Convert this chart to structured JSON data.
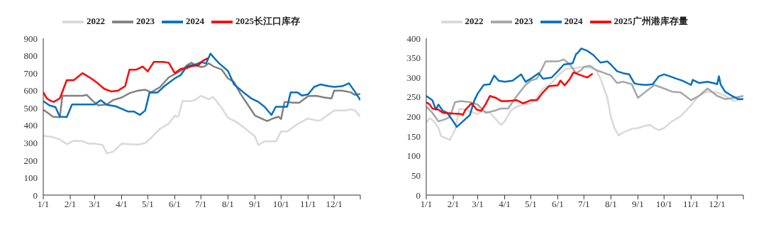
{
  "chart_data": [
    {
      "type": "line",
      "legend": "top",
      "xlim": [
        "--01-01",
        "--12-31"
      ],
      "ylim": [
        0,
        900
      ],
      "yticks": [
        0,
        100,
        200,
        300,
        400,
        500,
        600,
        700,
        800,
        900
      ],
      "xticks": [
        {
          "value": "--01-01",
          "label": "1/1"
        },
        {
          "value": "--02-01",
          "label": "2/1"
        },
        {
          "value": "--03-01",
          "label": "3/1"
        },
        {
          "value": "--04-01",
          "label": "4/1"
        },
        {
          "value": "--05-01",
          "label": "5/1"
        },
        {
          "value": "--06-01",
          "label": "6/1"
        },
        {
          "value": "--07-01",
          "label": "7/1"
        },
        {
          "value": "--08-01",
          "label": "8/1"
        },
        {
          "value": "--09-01",
          "label": "9/1"
        },
        {
          "value": "--10-01",
          "label": "10/1"
        },
        {
          "value": "--11-01",
          "label": "11/1"
        },
        {
          "value": "--12-01",
          "label": "12/1"
        },
        {
          "value": "--12-31",
          "label": null
        }
      ],
      "series": [
        {
          "name": "2022",
          "color": "#d9d9d9",
          "x": [
            "--01-01",
            "--01-10",
            "--01-20",
            "--01-28",
            "--02-05",
            "--02-15",
            "--02-22",
            "--03-01",
            "--03-10",
            "--03-15",
            "--03-22",
            "--04-01",
            "--04-10",
            "--04-20",
            "--04-28",
            "--05-05",
            "--05-15",
            "--05-25",
            "--06-01",
            "--06-05",
            "--06-10",
            "--06-20",
            "--06-25",
            "--07-01",
            "--07-10",
            "--07-15",
            "--07-25",
            "--08-01",
            "--08-10",
            "--08-20",
            "--09-01",
            "--09-05",
            "--09-12",
            "--09-25",
            "--10-01",
            "--10-08",
            "--10-20",
            "--11-01",
            "--11-10",
            "--11-15",
            "--11-25",
            "--12-01",
            "--12-15",
            "--12-20",
            "--12-25",
            "--12-31"
          ],
          "values": [
            340,
            335,
            320,
            292,
            312,
            310,
            295,
            295,
            288,
            240,
            248,
            295,
            292,
            290,
            298,
            330,
            380,
            410,
            455,
            450,
            540,
            540,
            548,
            570,
            550,
            564,
            500,
            443,
            422,
            386,
            337,
            287,
            308,
            308,
            365,
            365,
            408,
            440,
            429,
            429,
            464,
            486,
            486,
            493,
            486,
            450
          ]
        },
        {
          "name": "2023",
          "color": "#808080",
          "x": [
            "--01-01",
            "--01-08",
            "--01-12",
            "--01-20",
            "--01-23",
            "--02-05",
            "--02-15",
            "--02-20",
            "--02-28",
            "--03-05",
            "--03-15",
            "--03-22",
            "--04-01",
            "--04-10",
            "--04-20",
            "--04-28",
            "--05-05",
            "--05-15",
            "--05-25",
            "--06-01",
            "--06-10",
            "--06-15",
            "--06-20",
            "--06-25",
            "--07-01",
            "--07-05",
            "--07-10",
            "--07-15",
            "--07-25",
            "--08-01",
            "--08-08",
            "--08-15",
            "--08-25",
            "--09-01",
            "--09-08",
            "--09-15",
            "--09-22",
            "--09-28",
            "--10-01",
            "--10-05",
            "--10-15",
            "--10-22",
            "--11-01",
            "--11-10",
            "--11-20",
            "--11-28",
            "--12-01",
            "--12-10",
            "--12-20",
            "--12-25",
            "--12-31"
          ],
          "values": [
            490,
            465,
            450,
            447,
            570,
            570,
            570,
            575,
            535,
            515,
            520,
            545,
            560,
            585,
            600,
            605,
            590,
            620,
            675,
            695,
            720,
            745,
            760,
            745,
            735,
            738,
            756,
            740,
            720,
            670,
            649,
            585,
            510,
            457,
            440,
            425,
            440,
            450,
            436,
            535,
            530,
            530,
            568,
            570,
            560,
            555,
            600,
            600,
            590,
            575,
            580
          ]
        },
        {
          "name": "2024",
          "color": "#0070c0",
          "x": [
            "--01-01",
            "--01-08",
            "--01-15",
            "--01-20",
            "--01-28",
            "--02-03",
            "--02-15",
            "--02-25",
            "--03-01",
            "--03-08",
            "--03-15",
            "--03-25",
            "--04-01",
            "--04-08",
            "--04-15",
            "--04-22",
            "--04-28",
            "--05-03",
            "--05-12",
            "--05-20",
            "--06-01",
            "--06-08",
            "--06-15",
            "--06-25",
            "--07-01",
            "--07-07",
            "--07-12",
            "--07-18",
            "--07-22",
            "--08-01",
            "--08-08",
            "--08-20",
            "--08-28",
            "--09-05",
            "--09-12",
            "--09-20",
            "--09-25",
            "--10-01",
            "--10-08",
            "--10-12",
            "--10-20",
            "--10-25",
            "--11-01",
            "--11-08",
            "--11-15",
            "--11-25",
            "--12-01",
            "--12-10",
            "--12-18",
            "--12-25",
            "--12-31"
          ],
          "values": [
            540,
            515,
            505,
            450,
            448,
            520,
            520,
            520,
            520,
            545,
            518,
            510,
            495,
            480,
            480,
            460,
            485,
            588,
            588,
            625,
            670,
            690,
            740,
            750,
            763,
            756,
            812,
            777,
            756,
            713,
            635,
            585,
            554,
            535,
            507,
            460,
            507,
            507,
            507,
            589,
            589,
            571,
            578,
            621,
            635,
            625,
            621,
            625,
            642,
            592,
            545
          ]
        },
        {
          "name": "2025长江口库存",
          "color": "#ff0000",
          "x": [
            "--01-01",
            "--01-05",
            "--01-10",
            "--01-13",
            "--01-20",
            "--01-28",
            "--02-05",
            "--02-15",
            "--02-25",
            "--03-05",
            "--03-12",
            "--03-20",
            "--03-28",
            "--04-05",
            "--04-10",
            "--04-18",
            "--04-25",
            "--05-01",
            "--05-08",
            "--05-18",
            "--05-25",
            "--06-01",
            "--06-08",
            "--06-15",
            "--06-20",
            "--06-28",
            "--07-03",
            "--07-09"
          ],
          "values": [
            590,
            555,
            540,
            535,
            555,
            660,
            660,
            700,
            670,
            640,
            610,
            595,
            600,
            625,
            720,
            720,
            738,
            710,
            765,
            765,
            760,
            700,
            725,
            730,
            740,
            745,
            770,
            785
          ]
        }
      ]
    },
    {
      "type": "line",
      "legend": "top",
      "xlim": [
        "--01-01",
        "--12-31"
      ],
      "ylim": [
        0,
        400
      ],
      "yticks": [
        0,
        50,
        100,
        150,
        200,
        250,
        300,
        350,
        400
      ],
      "xticks": [
        {
          "value": "--01-01",
          "label": "1/1"
        },
        {
          "value": "--02-01",
          "label": "2/1"
        },
        {
          "value": "--03-01",
          "label": "3/1"
        },
        {
          "value": "--04-01",
          "label": "4/1"
        },
        {
          "value": "--05-01",
          "label": "5/1"
        },
        {
          "value": "--06-01",
          "label": "6/1"
        },
        {
          "value": "--07-01",
          "label": "7/1"
        },
        {
          "value": "--08-01",
          "label": "8/1"
        },
        {
          "value": "--09-01",
          "label": "9/1"
        },
        {
          "value": "--10-01",
          "label": "10/1"
        },
        {
          "value": "--11-01",
          "label": "11/1"
        },
        {
          "value": "--12-01",
          "label": "12/1"
        },
        {
          "value": "--12-31",
          "label": null
        }
      ],
      "series": [
        {
          "name": "2022",
          "color": "#d9d9d9",
          "x": [
            "--01-01",
            "--01-05",
            "--01-10",
            "--01-15",
            "--01-18",
            "--01-25",
            "--01-28",
            "--02-03",
            "--02-08",
            "--02-15",
            "--02-22",
            "--03-01",
            "--03-08",
            "--03-15",
            "--03-22",
            "--03-28",
            "--04-01",
            "--04-08",
            "--04-15",
            "--04-22",
            "--05-01",
            "--05-08",
            "--05-15",
            "--05-25",
            "--06-01",
            "--06-10",
            "--06-20",
            "--07-01",
            "--07-10",
            "--07-15",
            "--07-20",
            "--07-28",
            "--08-01",
            "--08-05",
            "--08-10",
            "--08-15",
            "--08-25",
            "--09-01",
            "--09-10",
            "--09-15",
            "--09-20",
            "--09-25",
            "--10-01",
            "--10-10",
            "--10-20",
            "--11-01",
            "--11-10",
            "--11-20",
            "--12-01",
            "--12-10",
            "--12-20",
            "--12-31"
          ],
          "values": [
            185,
            196,
            188,
            171,
            150,
            144,
            141,
            166,
            220,
            218,
            212,
            207,
            215,
            210,
            193,
            179,
            188,
            215,
            226,
            231,
            234,
            248,
            272,
            286,
            305,
            322,
            324,
            327,
            324,
            319,
            297,
            248,
            199,
            171,
            152,
            160,
            169,
            171,
            177,
            179,
            171,
            166,
            171,
            188,
            201,
            229,
            253,
            264,
            262,
            253,
            240,
            245
          ]
        },
        {
          "name": "2023",
          "color": "#a6a6a6",
          "x": [
            "--01-01",
            "--01-08",
            "--01-15",
            "--01-22",
            "--01-28",
            "--02-03",
            "--02-10",
            "--02-20",
            "--03-01",
            "--03-10",
            "--03-20",
            "--03-28",
            "--04-05",
            "--04-15",
            "--04-25",
            "--05-01",
            "--05-08",
            "--05-18",
            "--06-01",
            "--06-08",
            "--06-15",
            "--06-22",
            "--06-28",
            "--07-01",
            "--07-08",
            "--07-15",
            "--07-25",
            "--08-01",
            "--08-08",
            "--08-15",
            "--08-25",
            "--09-01",
            "--09-10",
            "--09-20",
            "--10-01",
            "--10-10",
            "--10-20",
            "--11-01",
            "--11-10",
            "--11-20",
            "--12-01",
            "--12-10",
            "--12-20",
            "--12-31"
          ],
          "values": [
            226,
            210,
            188,
            193,
            199,
            237,
            240,
            237,
            231,
            210,
            215,
            221,
            221,
            253,
            281,
            292,
            297,
            341,
            341,
            346,
            333,
            311,
            319,
            327,
            330,
            319,
            311,
            305,
            286,
            289,
            283,
            248,
            264,
            281,
            272,
            264,
            262,
            242,
            253,
            272,
            253,
            245,
            248,
            253
          ]
        },
        {
          "name": "2024",
          "color": "#0070c0",
          "x": [
            "--01-01",
            "--01-08",
            "--01-12",
            "--01-15",
            "--01-20",
            "--01-25",
            "--02-01",
            "--02-05",
            "--02-12",
            "--02-20",
            "--02-25",
            "--03-01",
            "--03-08",
            "--03-15",
            "--03-20",
            "--03-25",
            "--04-01",
            "--04-10",
            "--04-20",
            "--04-25",
            "--05-01",
            "--05-10",
            "--05-15",
            "--05-25",
            "--06-01",
            "--06-08",
            "--06-18",
            "--06-22",
            "--06-24",
            "--06-28",
            "--07-05",
            "--07-12",
            "--07-20",
            "--07-28",
            "--08-01",
            "--08-08",
            "--08-15",
            "--08-22",
            "--08-28",
            "--09-01",
            "--09-10",
            "--09-18",
            "--09-25",
            "--10-01",
            "--10-08",
            "--10-15",
            "--10-22",
            "--11-01",
            "--11-03",
            "--11-10",
            "--11-20",
            "--11-28",
            "--12-01",
            "--12-03",
            "--12-05",
            "--12-10",
            "--12-18",
            "--12-25",
            "--12-31"
          ],
          "values": [
            253,
            242,
            218,
            231,
            215,
            210,
            188,
            174,
            188,
            204,
            240,
            259,
            281,
            283,
            305,
            292,
            289,
            292,
            308,
            289,
            297,
            311,
            297,
            300,
            316,
            333,
            336,
            360,
            363,
            374,
            368,
            357,
            338,
            341,
            333,
            316,
            311,
            308,
            285,
            283,
            281,
            283,
            303,
            308,
            303,
            297,
            292,
            281,
            294,
            286,
            289,
            285,
            283,
            303,
            282,
            264,
            253,
            245,
            245
          ]
        },
        {
          "name": "2025广州港库存量",
          "color": "#ff0000",
          "x": [
            "--01-01",
            "--01-05",
            "--01-08",
            "--01-15",
            "--01-20",
            "--02-01",
            "--02-10",
            "--02-12",
            "--02-15",
            "--02-22",
            "--02-28",
            "--03-05",
            "--03-10",
            "--03-15",
            "--03-22",
            "--03-28",
            "--04-05",
            "--04-15",
            "--04-22",
            "--05-01",
            "--05-08",
            "--05-15",
            "--05-22",
            "--06-01",
            "--06-04",
            "--06-09",
            "--06-15",
            "--06-19",
            "--06-25",
            "--07-01",
            "--07-05",
            "--07-11"
          ],
          "values": [
            237,
            231,
            221,
            218,
            210,
            208,
            207,
            204,
            218,
            234,
            218,
            215,
            231,
            253,
            248,
            240,
            240,
            242,
            234,
            242,
            242,
            262,
            278,
            280,
            292,
            280,
            297,
            313,
            308,
            303,
            300,
            310
          ]
        }
      ]
    }
  ]
}
